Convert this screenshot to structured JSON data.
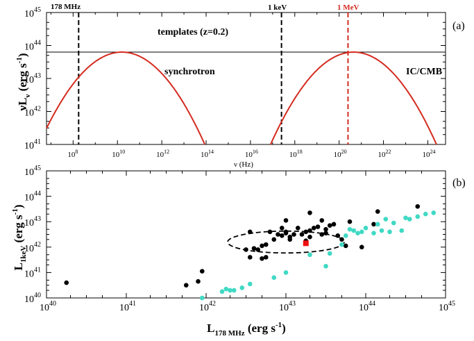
{
  "colors": {
    "red": "#d42a1e",
    "cyan": "#3fd9c4",
    "black": "#000000",
    "redSquare": "#ee1111"
  },
  "chart_data": [
    {
      "type": "line",
      "panel_label": "(a)",
      "title": "templates (z=0.2)",
      "xlabel": "ν (Hz)",
      "ylabel": "νL_ν (erg s^-1)",
      "ylabel_parts": {
        "main": "νL",
        "sub": "ν",
        "unit": " (erg s",
        "sup": "-1",
        "close": ")"
      },
      "xlim_log10": [
        6.8,
        24.8
      ],
      "ylim_log10": [
        41,
        45
      ],
      "x_ticks": [
        {
          "exp": 8,
          "label": "10",
          "sup": "8"
        },
        {
          "exp": 10,
          "label": "10",
          "sup": "10"
        },
        {
          "exp": 12,
          "label": "10",
          "sup": "12"
        },
        {
          "exp": 14,
          "label": "10",
          "sup": "14"
        },
        {
          "exp": 16,
          "label": "10",
          "sup": "16"
        },
        {
          "exp": 18,
          "label": "10",
          "sup": "18"
        },
        {
          "exp": 20,
          "label": "10",
          "sup": "20"
        },
        {
          "exp": 22,
          "label": "10",
          "sup": "22"
        },
        {
          "exp": 24,
          "label": "10",
          "sup": "24"
        }
      ],
      "y_ticks": [
        {
          "exp": 41,
          "label": "10",
          "sup": "41"
        },
        {
          "exp": 42,
          "label": "10",
          "sup": "42"
        },
        {
          "exp": 43,
          "label": "10",
          "sup": "43"
        },
        {
          "exp": 44,
          "label": "10",
          "sup": "44"
        },
        {
          "exp": 45,
          "label": "10",
          "sup": "45"
        }
      ],
      "horizontal_line_log10": 43.8,
      "vertical_lines": [
        {
          "x_log10": 8.25,
          "label": "178 MHz",
          "color": "black"
        },
        {
          "x_log10": 17.4,
          "label": "1 keV",
          "color": "black"
        },
        {
          "x_log10": 20.4,
          "label": "1 MeV",
          "color": "red"
        }
      ],
      "series": [
        {
          "name": "synchrotron",
          "peak_x_log10": 10.2,
          "peak_y_log10": 43.8,
          "curvature": 0.2,
          "xrange_log10": [
            6.8,
            14.0
          ]
        },
        {
          "name": "IC/CMB",
          "peak_x_log10": 20.65,
          "peak_y_log10": 43.8,
          "curvature": 0.2,
          "xrange_log10": [
            16.5,
            24.8
          ]
        }
      ]
    },
    {
      "type": "scatter",
      "panel_label": "(b)",
      "xlabel": "L_178 MHz (erg s^-1)",
      "ylabel": "L_1keV (erg s^-1)",
      "xlabel_parts": {
        "main": "L",
        "sub": "178 MHz",
        "unit": " (erg s",
        "sup": "-1",
        "close": ")"
      },
      "ylabel_parts": {
        "main": "L",
        "sub": "1keV",
        "unit": " (erg s",
        "sup": "-1",
        "close": ")"
      },
      "xlim_log10": [
        40,
        45
      ],
      "ylim_log10": [
        40,
        45
      ],
      "x_ticks": [
        {
          "exp": 40,
          "label": "10",
          "sup": "40"
        },
        {
          "exp": 41,
          "label": "10",
          "sup": "41"
        },
        {
          "exp": 42,
          "label": "10",
          "sup": "42"
        },
        {
          "exp": 43,
          "label": "10",
          "sup": "43"
        },
        {
          "exp": 44,
          "label": "10",
          "sup": "44"
        },
        {
          "exp": 45,
          "label": "10",
          "sup": "45"
        }
      ],
      "y_ticks": [
        {
          "exp": 40,
          "label": "10",
          "sup": "40"
        },
        {
          "exp": 41,
          "label": "10",
          "sup": "41"
        },
        {
          "exp": 42,
          "label": "10",
          "sup": "42"
        },
        {
          "exp": 43,
          "label": "10",
          "sup": "43"
        },
        {
          "exp": 44,
          "label": "10",
          "sup": "44"
        },
        {
          "exp": 45,
          "label": "10",
          "sup": "45"
        }
      ],
      "ellipse": {
        "cx_log10": 43.0,
        "cy_log10": 42.2,
        "rx_dex": 0.73,
        "ry_dex": 0.43
      },
      "series": [
        {
          "name": "black",
          "points": [
            [
              40.25,
              40.6
            ],
            [
              41.75,
              40.5
            ],
            [
              41.9,
              40.65
            ],
            [
              41.95,
              41.05
            ],
            [
              42.5,
              41.9
            ],
            [
              42.55,
              42.6
            ],
            [
              42.55,
              41.6
            ],
            [
              42.6,
              41.95
            ],
            [
              42.65,
              41.9
            ],
            [
              42.7,
              41.55
            ],
            [
              42.7,
              42.05
            ],
            [
              42.75,
              42.1
            ],
            [
              42.75,
              41.6
            ],
            [
              42.8,
              42.6
            ],
            [
              42.85,
              42.3
            ],
            [
              42.9,
              42.5
            ],
            [
              42.95,
              42.45
            ],
            [
              42.95,
              42.75
            ],
            [
              43.0,
              42.55
            ],
            [
              43.0,
              42.6
            ],
            [
              43.0,
              43.05
            ],
            [
              43.05,
              42.3
            ],
            [
              43.05,
              42.4
            ],
            [
              43.1,
              42.5
            ],
            [
              43.15,
              42.75
            ],
            [
              43.2,
              42.5
            ],
            [
              43.25,
              42.25
            ],
            [
              43.25,
              42.6
            ],
            [
              43.3,
              42.4
            ],
            [
              43.3,
              42.65
            ],
            [
              43.3,
              43.35
            ],
            [
              43.35,
              42.75
            ],
            [
              43.4,
              42.8
            ],
            [
              43.45,
              42.5
            ],
            [
              43.45,
              43.05
            ],
            [
              43.5,
              42.55
            ],
            [
              43.5,
              42.7
            ],
            [
              43.55,
              42.85
            ],
            [
              43.6,
              42.9
            ],
            [
              43.65,
              42.45
            ],
            [
              43.7,
              42.3
            ],
            [
              43.75,
              42.05
            ],
            [
              43.8,
              43.0
            ],
            [
              43.95,
              42.0
            ],
            [
              44.1,
              42.9
            ],
            [
              44.15,
              43.4
            ],
            [
              44.65,
              43.6
            ]
          ]
        },
        {
          "name": "cyan",
          "points": [
            [
              41.95,
              40.0
            ],
            [
              42.2,
              40.25
            ],
            [
              42.25,
              40.35
            ],
            [
              42.3,
              40.3
            ],
            [
              42.35,
              40.3
            ],
            [
              42.45,
              40.4
            ],
            [
              42.55,
              40.55
            ],
            [
              42.85,
              40.8
            ],
            [
              43.0,
              41.0
            ],
            [
              43.3,
              41.7
            ],
            [
              43.5,
              41.25
            ],
            [
              43.55,
              41.75
            ],
            [
              43.7,
              42.1
            ],
            [
              43.75,
              42.45
            ],
            [
              43.8,
              42.7
            ],
            [
              43.85,
              42.65
            ],
            [
              43.9,
              42.55
            ],
            [
              43.95,
              42.6
            ],
            [
              44.0,
              42.75
            ],
            [
              44.1,
              42.55
            ],
            [
              44.15,
              42.9
            ],
            [
              44.2,
              42.65
            ],
            [
              44.25,
              43.1
            ],
            [
              44.3,
              42.6
            ],
            [
              44.35,
              42.95
            ],
            [
              44.45,
              42.65
            ],
            [
              44.5,
              43.15
            ],
            [
              44.55,
              43.1
            ],
            [
              44.65,
              43.2
            ],
            [
              44.75,
              43.3
            ],
            [
              44.85,
              43.35
            ]
          ]
        },
        {
          "name": "red",
          "points": [
            [
              43.25,
              42.15
            ]
          ]
        }
      ]
    }
  ],
  "labels": {
    "panel_a": "(a)",
    "panel_b": "(b)",
    "templates": "templates (z=0.2)",
    "synchrotron": "synchrotron",
    "ic_cmb": "IC/CMB",
    "mhz": "178 MHz",
    "kev": "1 keV",
    "mev": "1 MeV",
    "nu_hz": "ν (Hz)"
  }
}
